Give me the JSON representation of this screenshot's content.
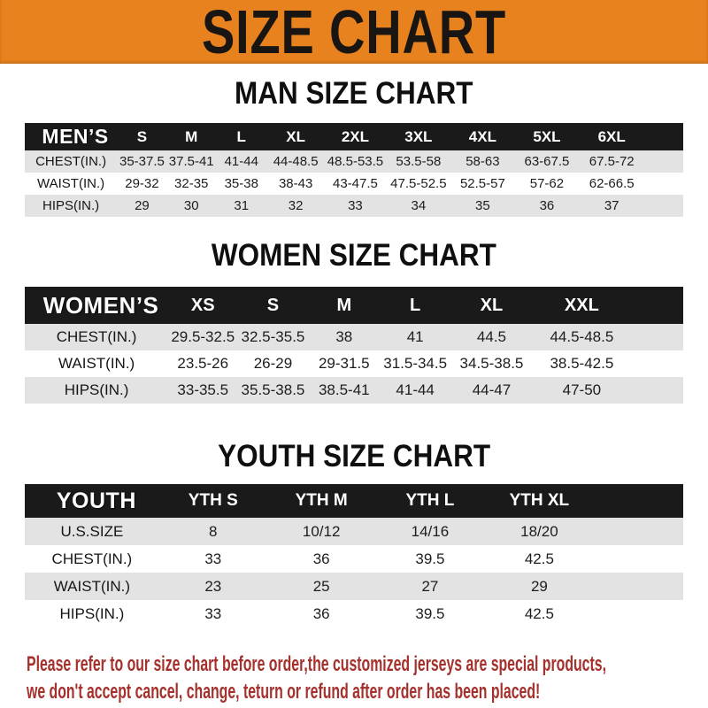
{
  "banner": {
    "title": "SIZE CHART"
  },
  "sections": [
    {
      "id": "man",
      "heading": "MAN SIZE CHART",
      "table": {
        "header_label": "MEN’S",
        "columns": [
          "S",
          "M",
          "L",
          "XL",
          "2XL",
          "3XL",
          "4XL",
          "5XL",
          "6XL"
        ],
        "rows": [
          {
            "label": "CHEST(IN.)",
            "values": [
              "35-37.5",
              "37.5-41",
              "41-44",
              "44-48.5",
              "48.5-53.5",
              "53.5-58",
              "58-63",
              "63-67.5",
              "67.5-72"
            ]
          },
          {
            "label": "WAIST(IN.)",
            "values": [
              "29-32",
              "32-35",
              "35-38",
              "38-43",
              "43-47.5",
              "47.5-52.5",
              "52.5-57",
              "57-62",
              "62-66.5"
            ]
          },
          {
            "label": "HIPS(IN.)",
            "values": [
              "29",
              "30",
              "31",
              "32",
              "33",
              "34",
              "35",
              "36",
              "37"
            ]
          }
        ]
      }
    },
    {
      "id": "women",
      "heading": "WOMEN SIZE CHART",
      "table": {
        "header_label": "WOMEN’S",
        "columns": [
          "XS",
          "S",
          "M",
          "L",
          "XL",
          "XXL"
        ],
        "rows": [
          {
            "label": "CHEST(IN.)",
            "values": [
              "29.5-32.5",
              "32.5-35.5",
              "38",
              "41",
              "44.5",
              "44.5-48.5"
            ]
          },
          {
            "label": "WAIST(IN.)",
            "values": [
              "23.5-26",
              "26-29",
              "29-31.5",
              "31.5-34.5",
              "34.5-38.5",
              "38.5-42.5"
            ]
          },
          {
            "label": "HIPS(IN.)",
            "values": [
              "33-35.5",
              "35.5-38.5",
              "38.5-41",
              "41-44",
              "44-47",
              "47-50"
            ]
          }
        ]
      }
    },
    {
      "id": "youth",
      "heading": "YOUTH SIZE CHART",
      "table": {
        "header_label": "YOUTH",
        "columns": [
          "YTH S",
          "YTH M",
          "YTH L",
          "YTH XL"
        ],
        "rows": [
          {
            "label": "U.S.SIZE",
            "values": [
              "8",
              "10/12",
              "14/16",
              "18/20"
            ]
          },
          {
            "label": "CHEST(IN.)",
            "values": [
              "33",
              "36",
              "39.5",
              "42.5"
            ]
          },
          {
            "label": "WAIST(IN.)",
            "values": [
              "23",
              "25",
              "27",
              "29"
            ]
          },
          {
            "label": "HIPS(IN.)",
            "values": [
              "33",
              "36",
              "39.5",
              "42.5"
            ]
          }
        ]
      }
    }
  ],
  "footer": {
    "lines": [
      "Please refer to our size chart before order,the customized jerseys are special products,",
      "we don't accept cancel, change, teturn or refund after order has been placed!"
    ]
  },
  "colors": {
    "banner_orange": "#E8821E",
    "bar_black": "#1A1A1A",
    "row_gray": "#E3E3E3",
    "footer_red": "#A5312D"
  }
}
